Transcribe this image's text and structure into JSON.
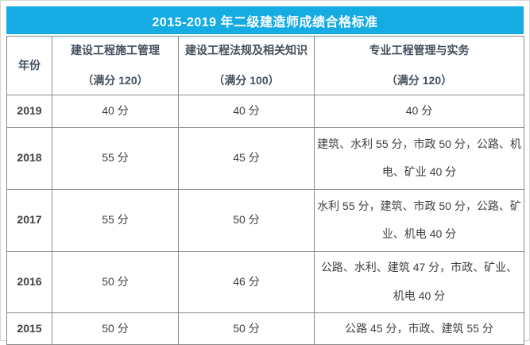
{
  "colors": {
    "title_bar_background": "#14ACE3",
    "title_text": "#FFFFFF",
    "header_text": "#44505E",
    "body_text": "#404040",
    "year_text": "#333A42",
    "table_border": "#8A8A8A",
    "page_background": "#FFFFFF"
  },
  "title": "2015-2019 年二级建造师成绩合格标准",
  "table": {
    "columns": {
      "year_label": "年份",
      "management_name": "建设工程施工管理",
      "management_full_mark": "（满分 120）",
      "regulations_name": "建设工程法规及相关知识",
      "regulations_full_mark": "（满分 100）",
      "practice_name": "专业工程管理与实务",
      "practice_full_mark": "（满分 120）"
    },
    "rows": [
      {
        "year": "2019",
        "management": "40 分",
        "regulations": "40 分",
        "practice": "40 分"
      },
      {
        "year": "2018",
        "management": "55 分",
        "regulations": "45 分",
        "practice": "建筑、水利 55 分，市政 50 分，公路、机电、矿业 40 分"
      },
      {
        "year": "2017",
        "management": "55 分",
        "regulations": "50 分",
        "practice": "水利 55 分，建筑、市政 50 分，公路、矿业、机电 40 分"
      },
      {
        "year": "2016",
        "management": "50 分",
        "regulations": "46 分",
        "practice": "公路、水利、建筑 47 分，市政、矿业、机电 40 分"
      },
      {
        "year": "2015",
        "management": "50 分",
        "regulations": "50 分",
        "practice": "公路 45 分，市政、建筑 55 分"
      }
    ]
  }
}
